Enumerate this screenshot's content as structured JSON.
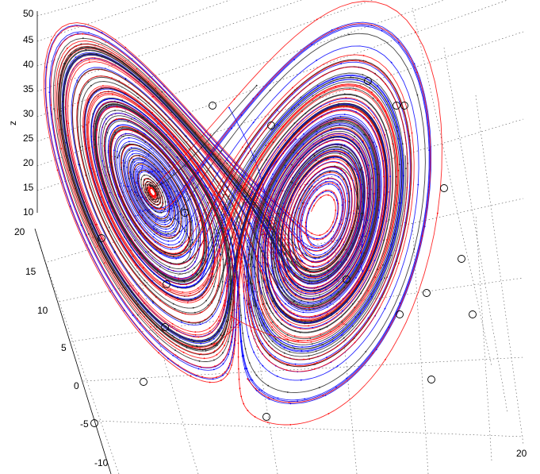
{
  "chart_data": {
    "type": "line",
    "title": "",
    "view": "3d",
    "zlabel": "z",
    "z_ticks": [
      "10",
      "15",
      "20",
      "25",
      "30",
      "35",
      "40",
      "45",
      "50"
    ],
    "y_ticks": [
      "20",
      "15",
      "10",
      "5",
      "0",
      "-5",
      "-10"
    ],
    "x_ticks": [
      "20"
    ],
    "zlim": [
      10,
      50
    ],
    "ylim": [
      -10,
      20
    ],
    "grid": true,
    "series": [
      {
        "color": "#0000ff"
      },
      {
        "color": "#ff0000"
      },
      {
        "color": "#222222"
      }
    ],
    "initial_conditions_marker": "circle"
  }
}
